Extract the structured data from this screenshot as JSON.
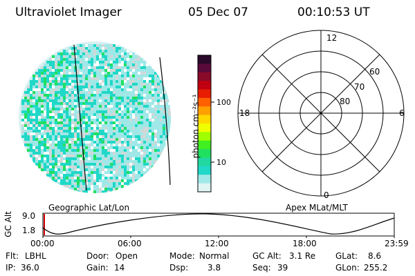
{
  "header": {
    "instrument": "Ultraviolet Imager",
    "date": "05 Dec 07",
    "time": "00:10:53 UT"
  },
  "colors": {
    "aurora_low": "#c8ecec",
    "aurora_mid": "#20d8c8",
    "aurora_high": "#20e060",
    "background": "#ffffff"
  },
  "colorbar": {
    "unit_label": "photon cm⁻²s⁻¹",
    "ticks": [
      {
        "label": "100",
        "value": 100
      },
      {
        "label": "10",
        "value": 10
      }
    ],
    "colors": [
      "#2a0a2a",
      "#5a0a3a",
      "#8a0a2a",
      "#c00010",
      "#e81c00",
      "#ff6000",
      "#ffa000",
      "#ffd800",
      "#f0ff00",
      "#a0ff00",
      "#40f020",
      "#20e060",
      "#20d8a0",
      "#20d8c8",
      "#a0e8e8",
      "#e0f4f4"
    ]
  },
  "left_panel": {
    "caption": "Geographic Lat/Lon"
  },
  "polar_panel": {
    "caption": "Apex MLat/MLT",
    "mlt_labels": [
      {
        "label": "12",
        "pos": "top"
      },
      {
        "label": "18",
        "pos": "left"
      },
      {
        "label": "6",
        "pos": "right"
      },
      {
        "label": "0",
        "pos": "bottom"
      }
    ],
    "lat_labels": [
      "60",
      "70",
      "80"
    ]
  },
  "altitude_plot": {
    "ylabel": "GC Alt",
    "yticks": [
      "9.0",
      "1.8"
    ],
    "xticks": [
      "00:00",
      "06:00",
      "12:00",
      "18:00",
      "23:59"
    ],
    "marker_color": "#cc0000"
  },
  "info": {
    "flt": {
      "label": "Flt:",
      "value": "LBHL"
    },
    "door": {
      "label": "Door:",
      "value": "Open"
    },
    "mode": {
      "label": "Mode:",
      "value": "Normal"
    },
    "gc_alt": {
      "label": "GC Alt:",
      "value": "3.1 Re"
    },
    "glat": {
      "label": "GLat:",
      "value": "8.6"
    },
    "ip": {
      "label": "IP:",
      "value": "36.0"
    },
    "gain": {
      "label": "Gain:",
      "value": "14"
    },
    "dsp": {
      "label": "Dsp:",
      "value": "3.8"
    },
    "seq": {
      "label": "Seq:",
      "value": "39"
    },
    "glon": {
      "label": "GLon:",
      "value": "255.2"
    }
  }
}
